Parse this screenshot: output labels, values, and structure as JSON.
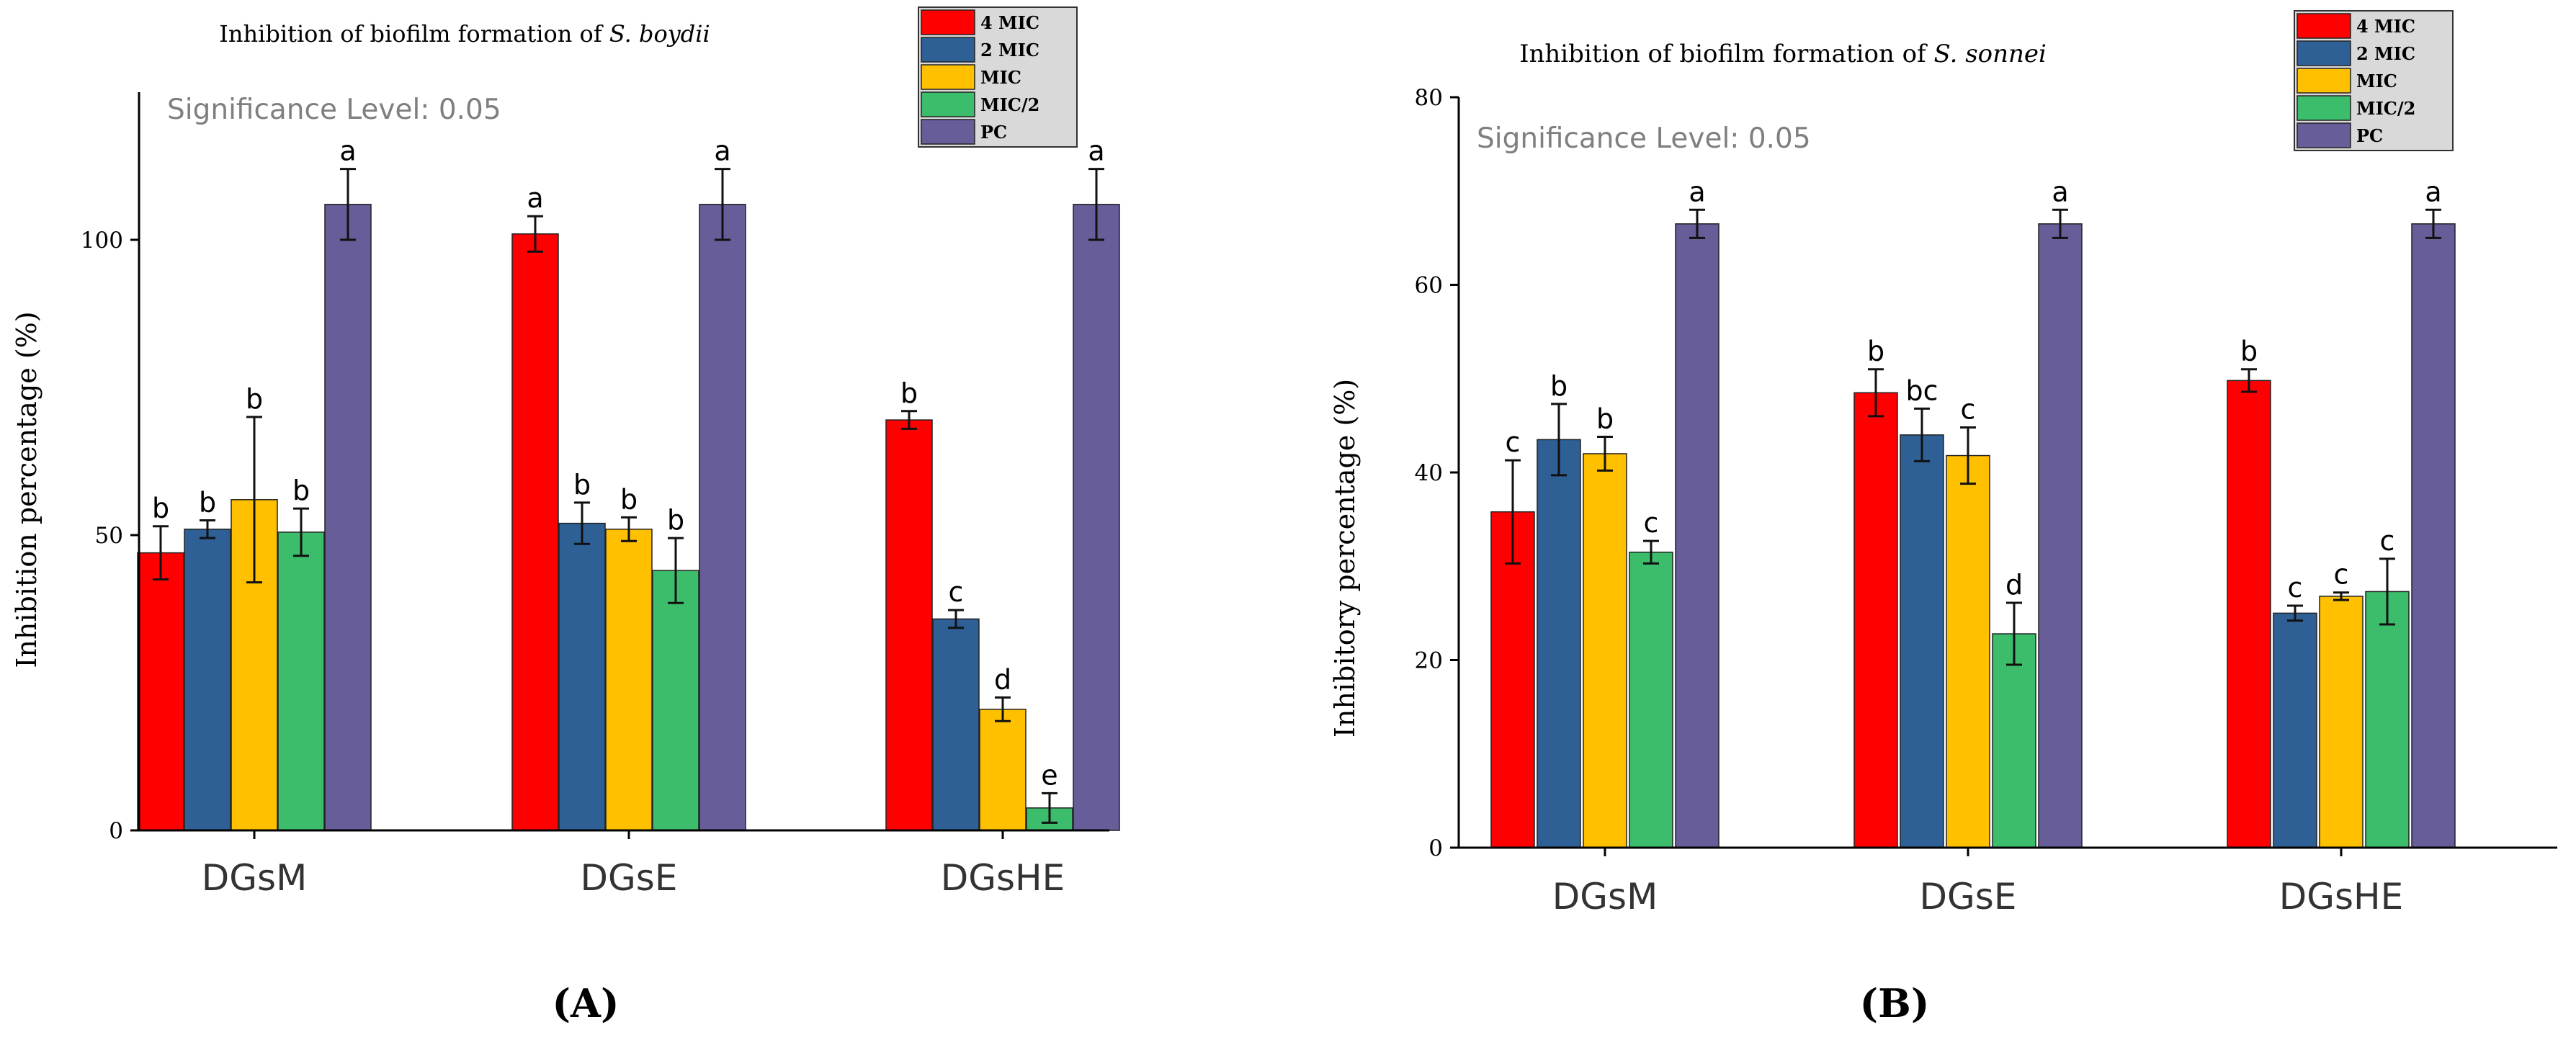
{
  "colors": {
    "4 MIC": "#ff0000",
    "2 MIC": "#2e6095",
    "MIC": "#ffc000",
    "MIC/2": "#3cbd6c",
    "PC": "#665d99",
    "text": "#000000",
    "significance": "#7f7f7f"
  },
  "chart_data": [
    {
      "type": "bar",
      "panel_label": "(A)",
      "title_prefix": "Inhibition of biofilm formation of ",
      "title_species": "S. boydii",
      "significance": "Significance Level: 0.05",
      "xlabel": "",
      "ylabel": "Inhibition percentage (%)",
      "ylim": [
        0,
        125
      ],
      "yticks": [
        0,
        50,
        100
      ],
      "categories": [
        "DGsM",
        "DGsE",
        "DGsHE"
      ],
      "legend_position": "top-right",
      "series": [
        {
          "name": "4 MIC",
          "values": [
            47,
            101,
            69.5
          ],
          "errors": [
            4.5,
            3,
            1.5
          ],
          "letters": [
            "b",
            "a",
            "b"
          ]
        },
        {
          "name": "2 MIC",
          "values": [
            51,
            52,
            35.8
          ],
          "errors": [
            1.5,
            3.5,
            1.5
          ],
          "letters": [
            "b",
            "b",
            "c"
          ]
        },
        {
          "name": "MIC",
          "values": [
            56,
            51,
            20.5
          ],
          "errors": [
            14,
            2,
            2
          ],
          "letters": [
            "b",
            "b",
            "d"
          ]
        },
        {
          "name": "MIC/2",
          "values": [
            50.5,
            44,
            3.8
          ],
          "errors": [
            4,
            5.5,
            2.5
          ],
          "letters": [
            "b",
            "b",
            "e"
          ]
        },
        {
          "name": "PC",
          "values": [
            106,
            106,
            106
          ],
          "errors": [
            6,
            6,
            6
          ],
          "letters": [
            "a",
            "a",
            "a"
          ]
        }
      ]
    },
    {
      "type": "bar",
      "panel_label": "(B)",
      "title_prefix": "Inhibition of biofilm formation of ",
      "title_species": "S. sonnei",
      "significance": "Significance Level: 0.05",
      "xlabel": "",
      "ylabel": "Inhibitory percentage (%)",
      "ylim": [
        0,
        80
      ],
      "yticks": [
        0,
        20,
        40,
        60,
        80
      ],
      "categories": [
        "DGsM",
        "DGsE",
        "DGsHE"
      ],
      "legend_position": "top-right",
      "series": [
        {
          "name": "4 MIC",
          "values": [
            35.8,
            48.5,
            49.8
          ],
          "errors": [
            5.5,
            2.5,
            1.2
          ],
          "letters": [
            "c",
            "b",
            "b"
          ]
        },
        {
          "name": "2 MIC",
          "values": [
            43.5,
            44,
            25
          ],
          "errors": [
            3.8,
            2.8,
            0.8
          ],
          "letters": [
            "b",
            "bc",
            "c"
          ]
        },
        {
          "name": "MIC",
          "values": [
            42,
            41.8,
            26.8
          ],
          "errors": [
            1.8,
            3,
            0.4
          ],
          "letters": [
            "b",
            "c",
            "c"
          ]
        },
        {
          "name": "MIC/2",
          "values": [
            31.5,
            22.8,
            27.3
          ],
          "errors": [
            1.2,
            3.3,
            3.5
          ],
          "letters": [
            "c",
            "d",
            "c"
          ]
        },
        {
          "name": "PC",
          "values": [
            66.5,
            66.5,
            66.5
          ],
          "errors": [
            1.5,
            1.5,
            1.5
          ],
          "letters": [
            "a",
            "a",
            "a"
          ]
        }
      ]
    }
  ]
}
